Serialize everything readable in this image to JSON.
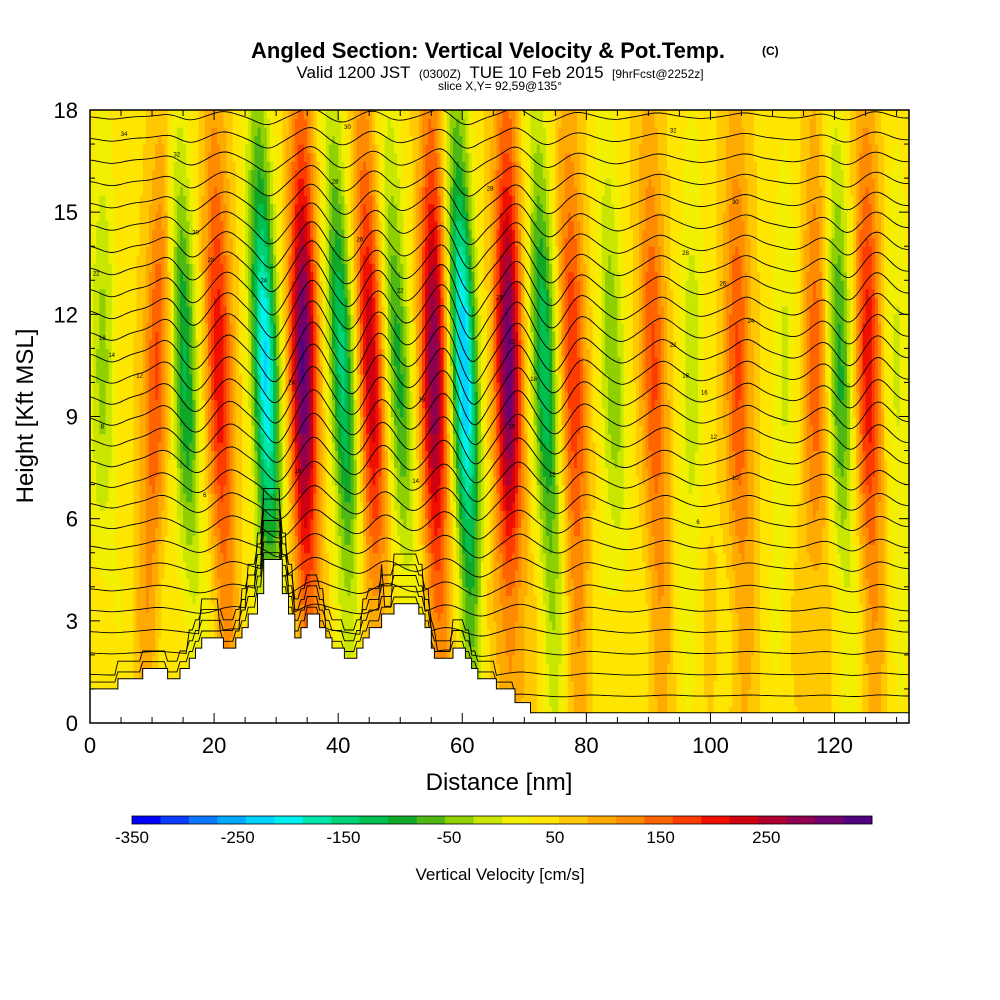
{
  "header": {
    "title": "Angled Section: Vertical Velocity & Pot.Temp.",
    "title_mark": "(C)",
    "valid_prefix": "Valid 1200 JST",
    "valid_utc": "(0300Z)",
    "valid_date": "TUE 10 Feb 2015",
    "forecast": "[9hrFcst@2252z]",
    "slice": "slice X,Y= 92,59@135°"
  },
  "chart_data": {
    "type": "heatmap",
    "title": "Angled Section: Vertical Velocity & Pot.Temp.",
    "xlabel": "Distance [nm]",
    "ylabel": "Height [Kft MSL]",
    "xlim": [
      0,
      132
    ],
    "ylim": [
      0,
      18
    ],
    "x_ticks": [
      0,
      20,
      40,
      60,
      80,
      100,
      120
    ],
    "y_ticks": [
      0,
      3,
      6,
      9,
      12,
      15,
      18
    ],
    "field": "Vertical Velocity [cm/s]",
    "contour_field": "Potential Temperature (C)",
    "colorbar": {
      "label": "Vertical Velocity [cm/s]",
      "min": -350,
      "max": 350,
      "step": 25,
      "tick_values": [
        -350,
        -250,
        -150,
        -50,
        50,
        150,
        250
      ],
      "tick_labels": [
        "-350",
        "-250",
        "-150",
        "-50",
        "50",
        "150",
        "250"
      ],
      "colors": [
        "#0000ff",
        "#0a3cff",
        "#0a78ff",
        "#00aaff",
        "#00d2ff",
        "#00f0f0",
        "#00e6aa",
        "#00d278",
        "#00be50",
        "#10a828",
        "#50b814",
        "#90d000",
        "#c8e600",
        "#f0f000",
        "#ffe600",
        "#ffc800",
        "#ffaa00",
        "#ff8c00",
        "#ff6400",
        "#ff3c00",
        "#f01000",
        "#d00010",
        "#b00030",
        "#900050",
        "#700070",
        "#500080"
      ]
    },
    "background_velocity": 20,
    "wave_bands": [
      {
        "x_bottom": 2,
        "x_top": 2,
        "value": -80
      },
      {
        "x_bottom": 9,
        "x_top": 12,
        "value": 110
      },
      {
        "x_bottom": 17,
        "x_top": 14,
        "value": -150
      },
      {
        "x_bottom": 22,
        "x_top": 20,
        "value": 150
      },
      {
        "x_bottom": 30,
        "x_top": 27,
        "value": -250
      },
      {
        "x_bottom": 35,
        "x_top": 34,
        "value": 260
      },
      {
        "x_bottom": 43,
        "x_top": 39,
        "value": -180
      },
      {
        "x_bottom": 47,
        "x_top": 44,
        "value": 180
      },
      {
        "x_bottom": 52,
        "x_top": 48,
        "value": -130
      },
      {
        "x_bottom": 56,
        "x_top": 55,
        "value": 230
      },
      {
        "x_bottom": 62,
        "x_top": 59,
        "value": -270
      },
      {
        "x_bottom": 68,
        "x_top": 67,
        "value": 250
      },
      {
        "x_bottom": 75,
        "x_top": 72,
        "value": -170
      },
      {
        "x_bottom": 79,
        "x_top": 77,
        "value": 130
      },
      {
        "x_bottom": 86,
        "x_top": 83,
        "value": -90
      },
      {
        "x_bottom": 92,
        "x_top": 90,
        "value": 110
      },
      {
        "x_bottom": 97,
        "x_top": 97,
        "value": -60
      },
      {
        "x_bottom": 105,
        "x_top": 104,
        "value": 110
      },
      {
        "x_bottom": 112,
        "x_top": 112,
        "value": -50
      },
      {
        "x_bottom": 117,
        "x_top": 117,
        "value": 100
      },
      {
        "x_bottom": 122,
        "x_top": 120,
        "value": -130
      },
      {
        "x_bottom": 126,
        "x_top": 125,
        "value": 150
      },
      {
        "x_bottom": 130,
        "x_top": 130,
        "value": -50
      }
    ],
    "terrain": [
      [
        0,
        1.0
      ],
      [
        4.5,
        1.0
      ],
      [
        4.5,
        1.3
      ],
      [
        8.5,
        1.3
      ],
      [
        8.5,
        1.6
      ],
      [
        12.5,
        1.6
      ],
      [
        12.5,
        1.3
      ],
      [
        14.5,
        1.3
      ],
      [
        14.5,
        1.6
      ],
      [
        16,
        1.6
      ],
      [
        16,
        1.9
      ],
      [
        17,
        1.9
      ],
      [
        17,
        2.2
      ],
      [
        18,
        2.2
      ],
      [
        18,
        2.5
      ],
      [
        21.5,
        2.5
      ],
      [
        21.5,
        2.2
      ],
      [
        23.5,
        2.2
      ],
      [
        23.5,
        2.5
      ],
      [
        24.5,
        2.5
      ],
      [
        24.5,
        2.8
      ],
      [
        25.5,
        2.8
      ],
      [
        25.5,
        3.2
      ],
      [
        27,
        3.2
      ],
      [
        27,
        3.8
      ],
      [
        28,
        3.8
      ],
      [
        28,
        4.8
      ],
      [
        31,
        4.8
      ],
      [
        31,
        3.8
      ],
      [
        32,
        3.8
      ],
      [
        32,
        3.2
      ],
      [
        33,
        3.2
      ],
      [
        33,
        2.5
      ],
      [
        34,
        2.5
      ],
      [
        34,
        2.8
      ],
      [
        35,
        2.8
      ],
      [
        35,
        3.2
      ],
      [
        37,
        3.2
      ],
      [
        37,
        2.8
      ],
      [
        38,
        2.8
      ],
      [
        38,
        2.5
      ],
      [
        39,
        2.5
      ],
      [
        39,
        2.2
      ],
      [
        41,
        2.2
      ],
      [
        41,
        1.9
      ],
      [
        43,
        1.9
      ],
      [
        43,
        2.2
      ],
      [
        44,
        2.2
      ],
      [
        44,
        2.5
      ],
      [
        45,
        2.5
      ],
      [
        45,
        2.8
      ],
      [
        47,
        2.8
      ],
      [
        47,
        3.2
      ],
      [
        49,
        3.2
      ],
      [
        49,
        3.5
      ],
      [
        53,
        3.5
      ],
      [
        53,
        3.2
      ],
      [
        54,
        3.2
      ],
      [
        54,
        2.8
      ],
      [
        55,
        2.8
      ],
      [
        55,
        2.2
      ],
      [
        55.5,
        2.2
      ],
      [
        55.5,
        1.9
      ],
      [
        58.5,
        1.9
      ],
      [
        58.5,
        2.2
      ],
      [
        60.5,
        2.2
      ],
      [
        60.5,
        1.9
      ],
      [
        61.5,
        1.9
      ],
      [
        61.5,
        1.6
      ],
      [
        62.5,
        1.6
      ],
      [
        62.5,
        1.3
      ],
      [
        65.5,
        1.3
      ],
      [
        65.5,
        1.0
      ],
      [
        68.5,
        1.0
      ],
      [
        68.5,
        0.6
      ],
      [
        71,
        0.6
      ],
      [
        71,
        0.3
      ],
      [
        132,
        0.3
      ]
    ],
    "theta_contours": {
      "count": 28,
      "z0": 0.8,
      "dz": 0.63
    },
    "contour_labels": [
      {
        "x": 5.5,
        "y": 17.3,
        "text": "34"
      },
      {
        "x": 14,
        "y": 16.7,
        "text": "32"
      },
      {
        "x": 17,
        "y": 14.4,
        "text": "30"
      },
      {
        "x": 19.5,
        "y": 13.6,
        "text": "28"
      },
      {
        "x": 28,
        "y": 13.0,
        "text": "24"
      },
      {
        "x": 32.5,
        "y": 10.0,
        "text": "24"
      },
      {
        "x": 33.5,
        "y": 7.4,
        "text": "16"
      },
      {
        "x": 41.5,
        "y": 17.5,
        "text": "30"
      },
      {
        "x": 39.5,
        "y": 15.9,
        "text": "28"
      },
      {
        "x": 43.5,
        "y": 14.2,
        "text": "26"
      },
      {
        "x": 50,
        "y": 12.7,
        "text": "22"
      },
      {
        "x": 53.5,
        "y": 9.5,
        "text": "18"
      },
      {
        "x": 52.5,
        "y": 7.1,
        "text": "14"
      },
      {
        "x": 64.5,
        "y": 15.7,
        "text": "28"
      },
      {
        "x": 66,
        "y": 12.5,
        "text": "26"
      },
      {
        "x": 68,
        "y": 11.2,
        "text": "22"
      },
      {
        "x": 71.5,
        "y": 10.1,
        "text": "18"
      },
      {
        "x": 68,
        "y": 8.7,
        "text": "16"
      },
      {
        "x": 74.5,
        "y": 7.3,
        "text": "12"
      },
      {
        "x": 94,
        "y": 17.4,
        "text": "32"
      },
      {
        "x": 104,
        "y": 15.3,
        "text": "30"
      },
      {
        "x": 96,
        "y": 13.8,
        "text": "28"
      },
      {
        "x": 102,
        "y": 12.9,
        "text": "26"
      },
      {
        "x": 106.5,
        "y": 11.8,
        "text": "24"
      },
      {
        "x": 94,
        "y": 11.1,
        "text": "22"
      },
      {
        "x": 96,
        "y": 10.2,
        "text": "18"
      },
      {
        "x": 99,
        "y": 9.7,
        "text": "16"
      },
      {
        "x": 100.5,
        "y": 8.4,
        "text": "12"
      },
      {
        "x": 104,
        "y": 7.2,
        "text": "10"
      },
      {
        "x": 98,
        "y": 5.9,
        "text": "6"
      },
      {
        "x": 1,
        "y": 13.2,
        "text": "22"
      },
      {
        "x": 2,
        "y": 11.3,
        "text": "18"
      },
      {
        "x": 3.5,
        "y": 10.8,
        "text": "14"
      },
      {
        "x": 8,
        "y": 10.2,
        "text": "12"
      },
      {
        "x": 2,
        "y": 8.7,
        "text": "8"
      },
      {
        "x": 18.5,
        "y": 6.7,
        "text": "6"
      }
    ]
  }
}
